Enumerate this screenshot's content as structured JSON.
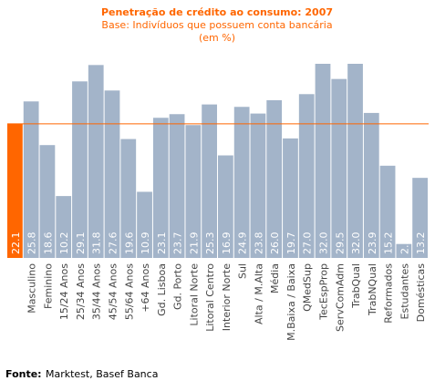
{
  "chart_data": {
    "type": "bar",
    "title": "Penetração de crédito ao consumo: 2007",
    "subtitle": "Base: Indivíduos que possuem conta bancária",
    "unit_note": "(em %)",
    "categories": [
      null,
      "Masculino",
      "Feminino",
      "15/24 Anos",
      "25/34 Anos",
      "35/44 Anos",
      "45/54 Anos",
      "55/64 Anos",
      "+64 Anos",
      "Gd. Lisboa",
      "Gd. Porto",
      "Litoral Norte",
      "Litoral Centro",
      "Interior Norte",
      "Sul",
      "Alta / M.Alta",
      "Média",
      "M.Baixa / Baixa",
      "QMedSup",
      "TecEspProp",
      "ServComAdm",
      "TrabQual",
      "TrabNQual",
      "Reformados",
      "Estudantes",
      "Domésticas"
    ],
    "values": [
      22.1,
      25.8,
      18.6,
      10.2,
      29.1,
      31.8,
      27.6,
      19.6,
      10.9,
      23.1,
      23.7,
      21.9,
      25.3,
      16.9,
      24.9,
      23.8,
      26.0,
      19.7,
      27.0,
      32.0,
      29.5,
      32.0,
      23.9,
      15.2,
      2.3,
      13.2
    ],
    "value_labels": [
      "22.1",
      "25.8",
      "18.6",
      "10.2",
      "29.1",
      "31.8",
      "27.6",
      "19.6",
      "10.9",
      "23.1",
      "23.7",
      "21.9",
      "25.3",
      "16.9",
      "24.9",
      "23.8",
      "26.0",
      "19.7",
      "27.0",
      "32.0",
      "29.5",
      "32.0",
      "23.9",
      "15.2",
      "2.3",
      "13.2"
    ],
    "color": "#a3b4c9",
    "highlight_color": "#ff6600",
    "source_label": "Fonte:",
    "source": "Marktest, Basef Banca"
  }
}
